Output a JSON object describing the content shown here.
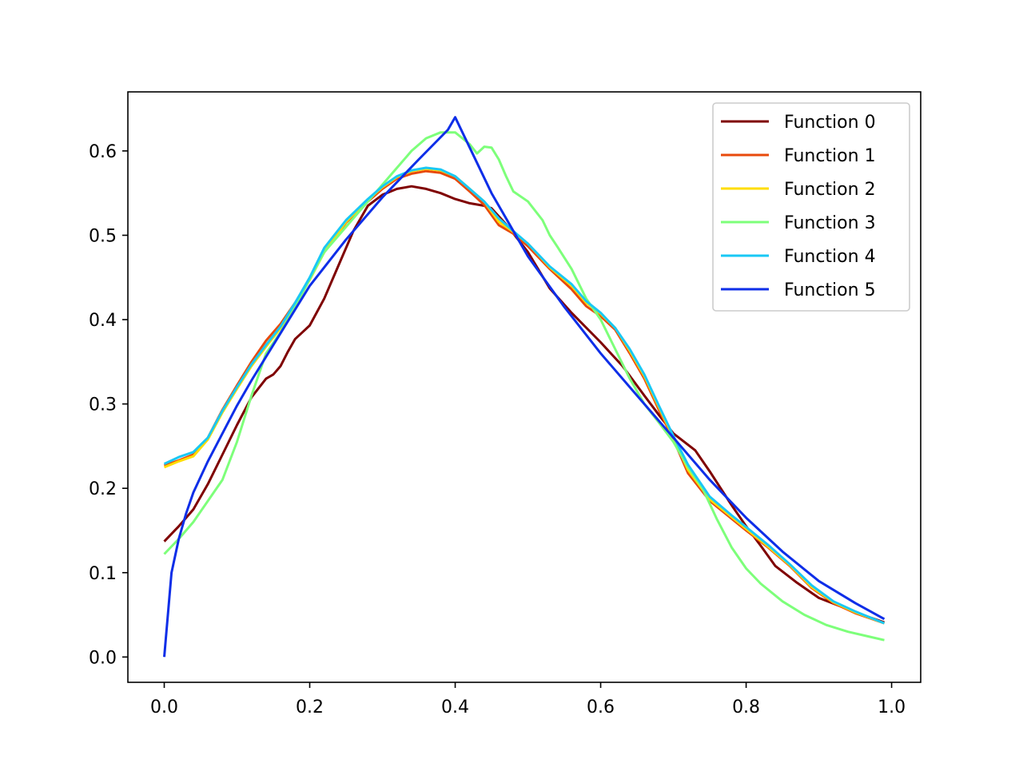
{
  "chart_data": {
    "type": "line",
    "title": "",
    "xlabel": "",
    "ylabel": "",
    "xlim": [
      -0.05,
      1.04
    ],
    "ylim": [
      -0.03,
      0.67
    ],
    "xticks": [
      0.0,
      0.2,
      0.4,
      0.6,
      0.8,
      1.0
    ],
    "xtick_labels": [
      "0.0",
      "0.2",
      "0.4",
      "0.6",
      "0.8",
      "1.0"
    ],
    "yticks": [
      0.0,
      0.1,
      0.2,
      0.3,
      0.4,
      0.5,
      0.6
    ],
    "ytick_labels": [
      "0.0",
      "0.1",
      "0.2",
      "0.3",
      "0.4",
      "0.5",
      "0.6"
    ],
    "grid": false,
    "legend_position": "top-right",
    "series": [
      {
        "name": "Function 0",
        "color": "#7f0000",
        "points": [
          [
            0.0,
            0.137
          ],
          [
            0.02,
            0.155
          ],
          [
            0.04,
            0.175
          ],
          [
            0.06,
            0.205
          ],
          [
            0.08,
            0.24
          ],
          [
            0.1,
            0.275
          ],
          [
            0.12,
            0.308
          ],
          [
            0.14,
            0.33
          ],
          [
            0.15,
            0.335
          ],
          [
            0.16,
            0.345
          ],
          [
            0.17,
            0.362
          ],
          [
            0.18,
            0.377
          ],
          [
            0.2,
            0.393
          ],
          [
            0.22,
            0.425
          ],
          [
            0.24,
            0.465
          ],
          [
            0.26,
            0.505
          ],
          [
            0.28,
            0.535
          ],
          [
            0.3,
            0.548
          ],
          [
            0.32,
            0.555
          ],
          [
            0.34,
            0.558
          ],
          [
            0.36,
            0.555
          ],
          [
            0.38,
            0.55
          ],
          [
            0.4,
            0.543
          ],
          [
            0.42,
            0.538
          ],
          [
            0.44,
            0.535
          ],
          [
            0.45,
            0.532
          ],
          [
            0.47,
            0.513
          ],
          [
            0.5,
            0.48
          ],
          [
            0.53,
            0.437
          ],
          [
            0.56,
            0.408
          ],
          [
            0.6,
            0.373
          ],
          [
            0.63,
            0.345
          ],
          [
            0.66,
            0.31
          ],
          [
            0.68,
            0.287
          ],
          [
            0.7,
            0.265
          ],
          [
            0.73,
            0.245
          ],
          [
            0.75,
            0.22
          ],
          [
            0.78,
            0.18
          ],
          [
            0.8,
            0.155
          ],
          [
            0.82,
            0.132
          ],
          [
            0.84,
            0.108
          ],
          [
            0.87,
            0.088
          ],
          [
            0.9,
            0.07
          ],
          [
            0.93,
            0.06
          ],
          [
            0.96,
            0.05
          ],
          [
            0.99,
            0.041
          ]
        ]
      },
      {
        "name": "Function 1",
        "color": "#e8490b",
        "points": [
          [
            0.0,
            0.227
          ],
          [
            0.02,
            0.233
          ],
          [
            0.04,
            0.24
          ],
          [
            0.06,
            0.26
          ],
          [
            0.08,
            0.293
          ],
          [
            0.1,
            0.322
          ],
          [
            0.12,
            0.35
          ],
          [
            0.14,
            0.375
          ],
          [
            0.16,
            0.395
          ],
          [
            0.18,
            0.42
          ],
          [
            0.2,
            0.448
          ],
          [
            0.22,
            0.48
          ],
          [
            0.25,
            0.515
          ],
          [
            0.28,
            0.54
          ],
          [
            0.3,
            0.555
          ],
          [
            0.32,
            0.567
          ],
          [
            0.34,
            0.573
          ],
          [
            0.36,
            0.576
          ],
          [
            0.38,
            0.574
          ],
          [
            0.4,
            0.567
          ],
          [
            0.42,
            0.552
          ],
          [
            0.44,
            0.536
          ],
          [
            0.46,
            0.512
          ],
          [
            0.48,
            0.502
          ],
          [
            0.5,
            0.487
          ],
          [
            0.53,
            0.46
          ],
          [
            0.56,
            0.436
          ],
          [
            0.58,
            0.416
          ],
          [
            0.6,
            0.404
          ],
          [
            0.62,
            0.388
          ],
          [
            0.64,
            0.36
          ],
          [
            0.66,
            0.33
          ],
          [
            0.68,
            0.293
          ],
          [
            0.7,
            0.258
          ],
          [
            0.72,
            0.218
          ],
          [
            0.75,
            0.185
          ],
          [
            0.78,
            0.164
          ],
          [
            0.8,
            0.15
          ],
          [
            0.83,
            0.13
          ],
          [
            0.86,
            0.108
          ],
          [
            0.89,
            0.082
          ],
          [
            0.92,
            0.064
          ],
          [
            0.95,
            0.052
          ],
          [
            0.99,
            0.04
          ]
        ]
      },
      {
        "name": "Function 2",
        "color": "#ffdd00",
        "points": [
          [
            0.0,
            0.225
          ],
          [
            0.02,
            0.232
          ],
          [
            0.04,
            0.238
          ],
          [
            0.06,
            0.258
          ],
          [
            0.08,
            0.29
          ],
          [
            0.1,
            0.318
          ],
          [
            0.12,
            0.345
          ],
          [
            0.14,
            0.368
          ],
          [
            0.16,
            0.39
          ],
          [
            0.18,
            0.418
          ],
          [
            0.2,
            0.447
          ],
          [
            0.22,
            0.48
          ],
          [
            0.25,
            0.516
          ],
          [
            0.28,
            0.542
          ],
          [
            0.3,
            0.557
          ],
          [
            0.32,
            0.569
          ],
          [
            0.34,
            0.576
          ],
          [
            0.36,
            0.579
          ],
          [
            0.38,
            0.577
          ],
          [
            0.4,
            0.57
          ],
          [
            0.42,
            0.555
          ],
          [
            0.44,
            0.54
          ],
          [
            0.46,
            0.516
          ],
          [
            0.48,
            0.504
          ],
          [
            0.5,
            0.49
          ],
          [
            0.53,
            0.462
          ],
          [
            0.56,
            0.44
          ],
          [
            0.58,
            0.42
          ],
          [
            0.6,
            0.407
          ],
          [
            0.62,
            0.39
          ],
          [
            0.64,
            0.363
          ],
          [
            0.66,
            0.333
          ],
          [
            0.68,
            0.296
          ],
          [
            0.7,
            0.26
          ],
          [
            0.72,
            0.222
          ],
          [
            0.75,
            0.187
          ],
          [
            0.78,
            0.166
          ],
          [
            0.8,
            0.152
          ],
          [
            0.83,
            0.131
          ],
          [
            0.86,
            0.109
          ],
          [
            0.89,
            0.083
          ],
          [
            0.92,
            0.065
          ],
          [
            0.95,
            0.053
          ],
          [
            0.99,
            0.04
          ]
        ]
      },
      {
        "name": "Function 3",
        "color": "#7dff7a",
        "points": [
          [
            0.0,
            0.122
          ],
          [
            0.02,
            0.14
          ],
          [
            0.04,
            0.16
          ],
          [
            0.06,
            0.185
          ],
          [
            0.08,
            0.21
          ],
          [
            0.1,
            0.255
          ],
          [
            0.12,
            0.31
          ],
          [
            0.14,
            0.36
          ],
          [
            0.16,
            0.385
          ],
          [
            0.18,
            0.415
          ],
          [
            0.2,
            0.448
          ],
          [
            0.22,
            0.48
          ],
          [
            0.25,
            0.51
          ],
          [
            0.28,
            0.54
          ],
          [
            0.3,
            0.56
          ],
          [
            0.32,
            0.58
          ],
          [
            0.34,
            0.6
          ],
          [
            0.36,
            0.615
          ],
          [
            0.38,
            0.622
          ],
          [
            0.4,
            0.622
          ],
          [
            0.42,
            0.608
          ],
          [
            0.43,
            0.597
          ],
          [
            0.44,
            0.605
          ],
          [
            0.45,
            0.604
          ],
          [
            0.46,
            0.59
          ],
          [
            0.47,
            0.57
          ],
          [
            0.48,
            0.552
          ],
          [
            0.5,
            0.54
          ],
          [
            0.52,
            0.518
          ],
          [
            0.53,
            0.5
          ],
          [
            0.54,
            0.487
          ],
          [
            0.56,
            0.46
          ],
          [
            0.58,
            0.425
          ],
          [
            0.6,
            0.4
          ],
          [
            0.62,
            0.365
          ],
          [
            0.64,
            0.33
          ],
          [
            0.66,
            0.3
          ],
          [
            0.68,
            0.278
          ],
          [
            0.7,
            0.255
          ],
          [
            0.72,
            0.225
          ],
          [
            0.74,
            0.2
          ],
          [
            0.76,
            0.163
          ],
          [
            0.78,
            0.13
          ],
          [
            0.8,
            0.105
          ],
          [
            0.82,
            0.087
          ],
          [
            0.85,
            0.066
          ],
          [
            0.88,
            0.05
          ],
          [
            0.91,
            0.038
          ],
          [
            0.94,
            0.03
          ],
          [
            0.97,
            0.024
          ],
          [
            0.99,
            0.02
          ]
        ]
      },
      {
        "name": "Function 4",
        "color": "#19c8f5",
        "points": [
          [
            0.0,
            0.229
          ],
          [
            0.02,
            0.237
          ],
          [
            0.04,
            0.243
          ],
          [
            0.06,
            0.26
          ],
          [
            0.08,
            0.292
          ],
          [
            0.1,
            0.32
          ],
          [
            0.12,
            0.347
          ],
          [
            0.14,
            0.37
          ],
          [
            0.16,
            0.392
          ],
          [
            0.18,
            0.42
          ],
          [
            0.2,
            0.45
          ],
          [
            0.22,
            0.485
          ],
          [
            0.25,
            0.518
          ],
          [
            0.28,
            0.543
          ],
          [
            0.3,
            0.558
          ],
          [
            0.32,
            0.57
          ],
          [
            0.34,
            0.577
          ],
          [
            0.36,
            0.58
          ],
          [
            0.38,
            0.578
          ],
          [
            0.4,
            0.57
          ],
          [
            0.42,
            0.555
          ],
          [
            0.44,
            0.54
          ],
          [
            0.46,
            0.52
          ],
          [
            0.48,
            0.505
          ],
          [
            0.5,
            0.49
          ],
          [
            0.53,
            0.463
          ],
          [
            0.56,
            0.442
          ],
          [
            0.58,
            0.422
          ],
          [
            0.6,
            0.408
          ],
          [
            0.62,
            0.39
          ],
          [
            0.64,
            0.365
          ],
          [
            0.66,
            0.335
          ],
          [
            0.68,
            0.298
          ],
          [
            0.7,
            0.262
          ],
          [
            0.72,
            0.228
          ],
          [
            0.75,
            0.19
          ],
          [
            0.78,
            0.168
          ],
          [
            0.8,
            0.154
          ],
          [
            0.83,
            0.133
          ],
          [
            0.86,
            0.11
          ],
          [
            0.89,
            0.085
          ],
          [
            0.92,
            0.066
          ],
          [
            0.95,
            0.054
          ],
          [
            0.99,
            0.04
          ]
        ]
      },
      {
        "name": "Function 5",
        "color": "#0e2ee8",
        "points": [
          [
            0.0,
            0.0
          ],
          [
            0.01,
            0.1
          ],
          [
            0.02,
            0.14
          ],
          [
            0.03,
            0.17
          ],
          [
            0.04,
            0.195
          ],
          [
            0.06,
            0.232
          ],
          [
            0.08,
            0.265
          ],
          [
            0.1,
            0.298
          ],
          [
            0.12,
            0.328
          ],
          [
            0.15,
            0.37
          ],
          [
            0.2,
            0.44
          ],
          [
            0.25,
            0.495
          ],
          [
            0.3,
            0.545
          ],
          [
            0.35,
            0.59
          ],
          [
            0.39,
            0.625
          ],
          [
            0.4,
            0.64
          ],
          [
            0.45,
            0.55
          ],
          [
            0.5,
            0.475
          ],
          [
            0.55,
            0.415
          ],
          [
            0.6,
            0.36
          ],
          [
            0.65,
            0.31
          ],
          [
            0.7,
            0.26
          ],
          [
            0.75,
            0.21
          ],
          [
            0.8,
            0.165
          ],
          [
            0.85,
            0.125
          ],
          [
            0.9,
            0.09
          ],
          [
            0.95,
            0.064
          ],
          [
            0.99,
            0.045
          ]
        ]
      }
    ]
  }
}
